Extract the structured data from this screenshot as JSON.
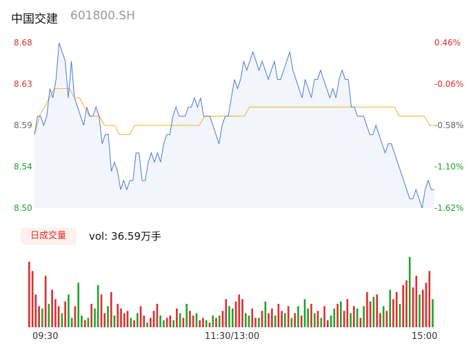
{
  "header": {
    "name": "中国交建",
    "code": "601800.SH"
  },
  "volume_panel": {
    "tab_label": "日成交量",
    "vol_text": "vol: 36.59万手"
  },
  "colors": {
    "price_line": "#4a78d6",
    "avg_line": "#f1b027",
    "up": "#e02c2c",
    "down": "#1fa32a",
    "area": "#f2f5fc"
  },
  "chart_data": [
    {
      "type": "line",
      "ylim": [
        8.5,
        8.68
      ],
      "y_ticks": [
        "8.68",
        "8.63",
        "8.59",
        "8.54",
        "8.50"
      ],
      "pct_ticks": [
        "0.46%",
        "-0.06%",
        "-0.58%",
        "-1.10%",
        "-1.62%"
      ],
      "pct_colors": [
        "up",
        "up",
        "neutral",
        "down",
        "down"
      ],
      "x_ticks": [
        "09:30",
        "11:30/13:00",
        "15:00"
      ],
      "series": [
        {
          "values": [
            8.58,
            8.6,
            8.6,
            8.59,
            8.6,
            8.63,
            8.62,
            8.64,
            8.68,
            8.67,
            8.66,
            8.62,
            8.66,
            8.62,
            8.61,
            8.6,
            8.59,
            8.61,
            8.6,
            8.6,
            8.61,
            8.6,
            8.57,
            8.58,
            8.58,
            8.54,
            8.55,
            8.54,
            8.52,
            8.53,
            8.52,
            8.53,
            8.53,
            8.56,
            8.56,
            8.53,
            8.53,
            8.55,
            8.56,
            8.55,
            8.56,
            8.55,
            8.57,
            8.58,
            8.58,
            8.6,
            8.61,
            8.6,
            8.6,
            8.6,
            8.61,
            8.61,
            8.62,
            8.61,
            8.62,
            8.6,
            8.6,
            8.6,
            8.59,
            8.58,
            8.57,
            8.59,
            8.6,
            8.6,
            8.62,
            8.64,
            8.63,
            8.64,
            8.66,
            8.65,
            8.66,
            8.67,
            8.66,
            8.65,
            8.66,
            8.65,
            8.64,
            8.65,
            8.66,
            8.64,
            8.64,
            8.65,
            8.66,
            8.67,
            8.65,
            8.64,
            8.63,
            8.62,
            8.64,
            8.63,
            8.62,
            8.64,
            8.64,
            8.65,
            8.64,
            8.63,
            8.62,
            8.63,
            8.62,
            8.64,
            8.65,
            8.64,
            8.64,
            8.61,
            8.61,
            8.6,
            8.6,
            8.6,
            8.59,
            8.58,
            8.58,
            8.59,
            8.58,
            8.57,
            8.56,
            8.57,
            8.57,
            8.56,
            8.55,
            8.54,
            8.53,
            8.52,
            8.51,
            8.51,
            8.52,
            8.51,
            8.5,
            8.52,
            8.53,
            8.52,
            8.52
          ]
        },
        {
          "values": [
            8.58,
            8.6,
            8.61,
            8.62,
            8.63,
            8.63,
            8.63,
            8.63,
            8.62,
            8.62,
            8.61,
            8.6,
            8.6,
            8.6,
            8.59,
            8.59,
            8.59,
            8.58,
            8.58,
            8.58,
            8.59,
            8.59,
            8.59,
            8.59,
            8.59,
            8.59,
            8.59,
            8.59,
            8.59,
            8.59,
            8.59,
            8.59,
            8.59,
            8.59,
            8.6,
            8.6,
            8.6,
            8.6,
            8.6,
            8.6,
            8.6,
            8.6,
            8.6,
            8.61,
            8.61,
            8.61,
            8.61,
            8.61,
            8.61,
            8.61,
            8.61,
            8.61,
            8.61,
            8.61,
            8.61,
            8.61,
            8.61,
            8.61,
            8.61,
            8.61,
            8.61,
            8.61,
            8.61,
            8.61,
            8.61,
            8.61,
            8.61,
            8.61,
            8.61,
            8.61,
            8.61,
            8.61,
            8.61,
            8.6,
            8.6,
            8.6,
            8.6,
            8.6,
            8.6,
            8.59,
            8.59
          ]
        }
      ]
    },
    {
      "type": "bar",
      "x_ticks": [
        "09:30",
        "11:30/13:00",
        "15:00"
      ],
      "values": [
        28,
        24,
        14,
        9,
        8,
        22,
        10,
        16,
        12,
        9,
        6,
        11,
        14,
        4,
        9,
        19,
        5,
        3,
        4,
        10,
        8,
        18,
        14,
        6,
        9,
        15,
        5,
        10,
        8,
        6,
        7,
        4,
        3,
        6,
        9,
        5,
        2,
        4,
        7,
        10,
        5,
        3,
        4,
        5,
        3,
        8,
        6,
        4,
        10,
        7,
        5,
        6,
        3,
        4,
        3,
        2,
        5,
        4,
        5,
        7,
        12,
        9,
        8,
        11,
        14,
        12,
        6,
        5,
        8,
        4,
        4,
        7,
        11,
        6,
        8,
        5,
        10,
        7,
        6,
        9,
        4,
        6,
        9,
        5,
        12,
        8,
        10,
        6,
        7,
        4,
        9,
        3,
        5,
        8,
        10,
        11,
        7,
        12,
        6,
        9,
        8,
        4,
        9,
        15,
        11,
        13,
        14,
        6,
        9,
        7,
        16,
        12,
        15,
        10,
        18,
        20,
        30,
        17,
        22,
        14,
        16,
        19,
        24,
        12
      ],
      "colors": [
        "up",
        "up",
        "up",
        "up",
        "down",
        "up",
        "down",
        "up",
        "up",
        "up",
        "down",
        "up",
        "down",
        "down",
        "up",
        "down",
        "down",
        "up",
        "down",
        "up",
        "down",
        "down",
        "up",
        "up",
        "down",
        "up",
        "down",
        "up",
        "up",
        "up",
        "up",
        "down",
        "up",
        "down",
        "up",
        "up",
        "down",
        "up",
        "up",
        "up",
        "down",
        "down",
        "up",
        "up",
        "down",
        "up",
        "down",
        "up",
        "down",
        "up",
        "up",
        "down",
        "up",
        "up",
        "down",
        "up",
        "down",
        "up",
        "down",
        "up",
        "up",
        "down",
        "down",
        "up",
        "up",
        "up",
        "down",
        "down",
        "up",
        "up",
        "down",
        "up",
        "down",
        "up",
        "up",
        "down",
        "up",
        "up",
        "down",
        "up",
        "down",
        "up",
        "down",
        "up",
        "down",
        "down",
        "up",
        "down",
        "up",
        "down",
        "up",
        "up",
        "down",
        "down",
        "up",
        "down",
        "up",
        "up",
        "down",
        "up",
        "down",
        "up",
        "down",
        "up",
        "up",
        "down",
        "up",
        "up",
        "down",
        "up",
        "down",
        "up",
        "up",
        "down",
        "up",
        "up",
        "down",
        "up",
        "up",
        "down",
        "up",
        "up",
        "up",
        "down"
      ]
    }
  ]
}
